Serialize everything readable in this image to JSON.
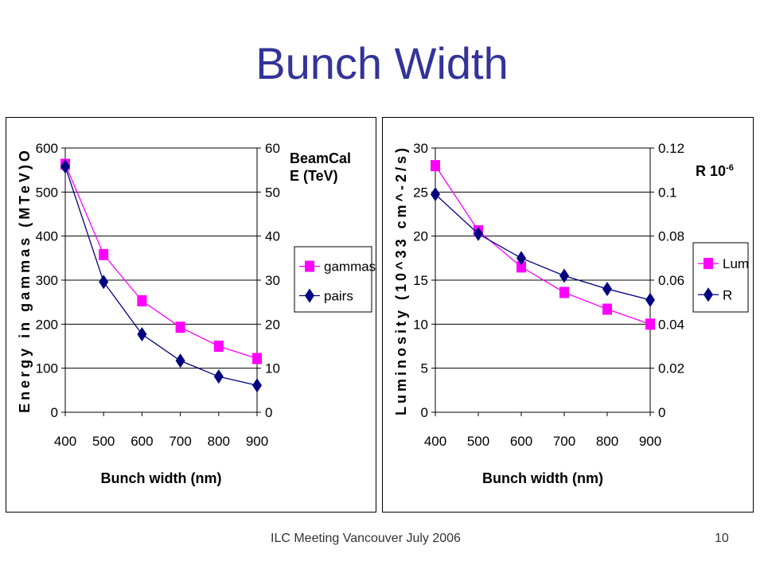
{
  "slide": {
    "title": "Bunch Width",
    "footer_text": "ILC Meeting Vancouver July 2006",
    "page_number": "10"
  },
  "annotations": {
    "left_line1": "BeamCal",
    "left_line2": "E (TeV)",
    "right_base": "R 10",
    "right_exp": "-6"
  },
  "colors": {
    "title": "#333399",
    "series_magenta": "#FF00FF",
    "series_navy": "#000080"
  },
  "chart_data": [
    {
      "type": "line",
      "x": [
        400,
        500,
        600,
        700,
        800,
        900
      ],
      "xlabel": "Bunch width (nm)",
      "ylabel": "Energy in gammas (MTeV)O",
      "ylim": [
        0,
        600
      ],
      "y_ticks": [
        0,
        100,
        200,
        300,
        400,
        500,
        600
      ],
      "y2lim": [
        0,
        60
      ],
      "y2_ticks": [
        0,
        10,
        20,
        30,
        40,
        50,
        60
      ],
      "grid": true,
      "legend": "right",
      "series": [
        {
          "name": "gammas",
          "marker": "square",
          "color": "#FF00FF",
          "axis": "left",
          "values": [
            563,
            358,
            253,
            193,
            150,
            122
          ]
        },
        {
          "name": "pairs",
          "marker": "diamond",
          "color": "#000080",
          "axis": "left",
          "values": [
            558,
            296,
            177,
            117,
            81,
            61
          ]
        }
      ]
    },
    {
      "type": "line",
      "x": [
        400,
        500,
        600,
        700,
        800,
        900
      ],
      "xlabel": "Bunch width (nm)",
      "ylabel": "Luminosity (10^33 cm^-2/s)",
      "ylim": [
        0,
        30
      ],
      "y_ticks": [
        0,
        5,
        10,
        15,
        20,
        25,
        30
      ],
      "y2lim": [
        0,
        0.12
      ],
      "y2_ticks": [
        "0",
        "0.02",
        "0.04",
        "0.06",
        "0.08",
        "0.1",
        "0.12"
      ],
      "grid": true,
      "legend": "right",
      "series": [
        {
          "name": "Lum",
          "marker": "square",
          "color": "#FF00FF",
          "axis": "left",
          "values": [
            28.0,
            20.6,
            16.5,
            13.6,
            11.7,
            10.0
          ]
        },
        {
          "name": "R",
          "marker": "diamond",
          "color": "#000080",
          "axis": "right",
          "values": [
            0.099,
            0.081,
            0.07,
            0.062,
            0.056,
            0.051
          ]
        }
      ]
    }
  ]
}
